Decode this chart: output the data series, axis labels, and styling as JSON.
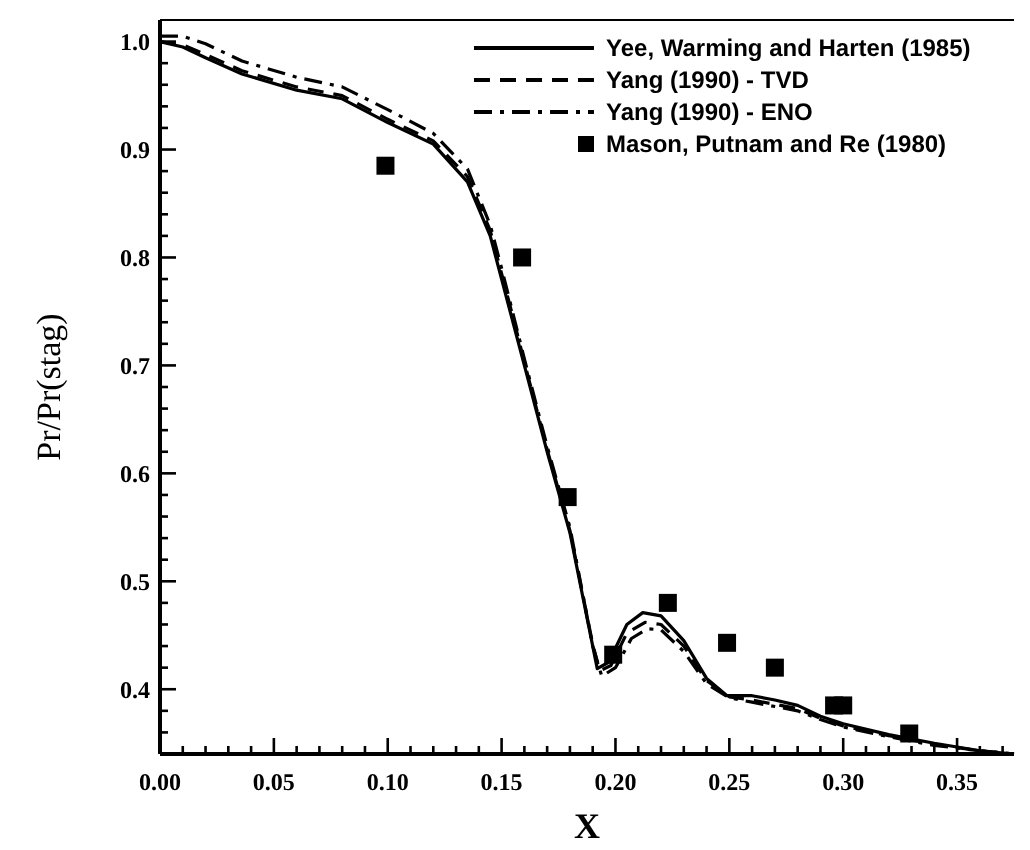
{
  "chart_data": {
    "type": "line",
    "xlabel": "X",
    "ylabel": "Pr/Pr(stag)",
    "xlim": [
      0,
      0.375
    ],
    "ylim": [
      0.34,
      1.02
    ],
    "xticks": [
      {
        "value": 0,
        "label": "0.00"
      },
      {
        "value": 0.01,
        "label": null
      },
      {
        "value": 0.02,
        "label": null
      },
      {
        "value": 0.03,
        "label": null
      },
      {
        "value": 0.04,
        "label": null
      },
      {
        "value": 0.05,
        "label": "0.05"
      },
      {
        "value": 0.06,
        "label": null
      },
      {
        "value": 0.07,
        "label": null
      },
      {
        "value": 0.08,
        "label": null
      },
      {
        "value": 0.09,
        "label": null
      },
      {
        "value": 0.1,
        "label": "0.10"
      },
      {
        "value": 0.11,
        "label": null
      },
      {
        "value": 0.12,
        "label": null
      },
      {
        "value": 0.13,
        "label": null
      },
      {
        "value": 0.14,
        "label": null
      },
      {
        "value": 0.15,
        "label": "0.15"
      },
      {
        "value": 0.16,
        "label": null
      },
      {
        "value": 0.17,
        "label": null
      },
      {
        "value": 0.18,
        "label": null
      },
      {
        "value": 0.19,
        "label": null
      },
      {
        "value": 0.2,
        "label": "0.20"
      },
      {
        "value": 0.21,
        "label": null
      },
      {
        "value": 0.22,
        "label": null
      },
      {
        "value": 0.23,
        "label": null
      },
      {
        "value": 0.24,
        "label": null
      },
      {
        "value": 0.25,
        "label": "0.25"
      },
      {
        "value": 0.26,
        "label": null
      },
      {
        "value": 0.27,
        "label": null
      },
      {
        "value": 0.28,
        "label": null
      },
      {
        "value": 0.29,
        "label": null
      },
      {
        "value": 0.3,
        "label": "0.30"
      },
      {
        "value": 0.31,
        "label": null
      },
      {
        "value": 0.32,
        "label": null
      },
      {
        "value": 0.33,
        "label": null
      },
      {
        "value": 0.34,
        "label": null
      },
      {
        "value": 0.35,
        "label": "0.35"
      },
      {
        "value": 0.36,
        "label": null
      },
      {
        "value": 0.37,
        "label": null
      }
    ],
    "yticks": [
      {
        "value": 0.36,
        "label": null
      },
      {
        "value": 0.38,
        "label": null
      },
      {
        "value": 0.4,
        "label": "0.4"
      },
      {
        "value": 0.42,
        "label": null
      },
      {
        "value": 0.44,
        "label": null
      },
      {
        "value": 0.46,
        "label": null
      },
      {
        "value": 0.48,
        "label": null
      },
      {
        "value": 0.5,
        "label": "0.5"
      },
      {
        "value": 0.52,
        "label": null
      },
      {
        "value": 0.54,
        "label": null
      },
      {
        "value": 0.56,
        "label": null
      },
      {
        "value": 0.58,
        "label": null
      },
      {
        "value": 0.6,
        "label": "0.6"
      },
      {
        "value": 0.62,
        "label": null
      },
      {
        "value": 0.64,
        "label": null
      },
      {
        "value": 0.66,
        "label": null
      },
      {
        "value": 0.68,
        "label": null
      },
      {
        "value": 0.7,
        "label": "0.7"
      },
      {
        "value": 0.72,
        "label": null
      },
      {
        "value": 0.74,
        "label": null
      },
      {
        "value": 0.76,
        "label": null
      },
      {
        "value": 0.78,
        "label": null
      },
      {
        "value": 0.8,
        "label": "0.8"
      },
      {
        "value": 0.82,
        "label": null
      },
      {
        "value": 0.84,
        "label": null
      },
      {
        "value": 0.86,
        "label": null
      },
      {
        "value": 0.88,
        "label": null
      },
      {
        "value": 0.9,
        "label": "0.9"
      },
      {
        "value": 0.92,
        "label": null
      },
      {
        "value": 0.94,
        "label": null
      },
      {
        "value": 0.96,
        "label": null
      },
      {
        "value": 0.98,
        "label": null
      },
      {
        "value": 1.0,
        "label": "1.0"
      }
    ],
    "grid": false,
    "legend": "top right",
    "series": [
      {
        "name": "Yee, Warming and Harten (1985)",
        "color": "#000000",
        "line_style": "solid",
        "x": [
          0,
          0.01,
          0.02,
          0.036,
          0.06,
          0.08,
          0.1,
          0.12,
          0.135,
          0.145,
          0.15,
          0.155,
          0.16,
          0.17,
          0.18,
          0.19,
          0.192,
          0.197,
          0.205,
          0.212,
          0.22,
          0.23,
          0.24,
          0.249,
          0.26,
          0.27,
          0.28,
          0.29,
          0.3,
          0.32,
          0.34,
          0.36,
          0.375
        ],
        "values": [
          1.0,
          0.995,
          0.985,
          0.97,
          0.955,
          0.947,
          0.925,
          0.905,
          0.87,
          0.82,
          0.78,
          0.74,
          0.7,
          0.62,
          0.545,
          0.44,
          0.419,
          0.425,
          0.46,
          0.471,
          0.468,
          0.445,
          0.41,
          0.394,
          0.394,
          0.39,
          0.385,
          0.375,
          0.368,
          0.358,
          0.35,
          0.343,
          0.34
        ]
      },
      {
        "name": "Yang (1990) - TVD",
        "color": "#000000",
        "line_style": "dashed",
        "x": [
          0,
          0.01,
          0.02,
          0.036,
          0.06,
          0.08,
          0.1,
          0.12,
          0.135,
          0.145,
          0.15,
          0.155,
          0.16,
          0.17,
          0.18,
          0.19,
          0.193,
          0.198,
          0.205,
          0.213,
          0.22,
          0.23,
          0.24,
          0.25,
          0.26,
          0.27,
          0.28,
          0.29,
          0.3,
          0.32,
          0.34,
          0.36,
          0.375
        ],
        "values": [
          1.0,
          0.997,
          0.988,
          0.973,
          0.958,
          0.95,
          0.928,
          0.908,
          0.875,
          0.825,
          0.785,
          0.745,
          0.703,
          0.622,
          0.547,
          0.442,
          0.417,
          0.422,
          0.452,
          0.462,
          0.46,
          0.44,
          0.408,
          0.393,
          0.39,
          0.386,
          0.382,
          0.373,
          0.366,
          0.357,
          0.349,
          0.343,
          0.34
        ]
      },
      {
        "name": "Yang (1990) - ENO",
        "color": "#000000",
        "line_style": "dashdot",
        "x": [
          0,
          0.01,
          0.02,
          0.036,
          0.06,
          0.08,
          0.1,
          0.12,
          0.135,
          0.145,
          0.15,
          0.155,
          0.16,
          0.17,
          0.18,
          0.19,
          0.194,
          0.2,
          0.207,
          0.214,
          0.22,
          0.23,
          0.24,
          0.25,
          0.26,
          0.27,
          0.28,
          0.29,
          0.3,
          0.32,
          0.34,
          0.36,
          0.375
        ],
        "values": [
          1.005,
          1.005,
          0.998,
          0.982,
          0.967,
          0.958,
          0.937,
          0.915,
          0.882,
          0.83,
          0.79,
          0.748,
          0.706,
          0.625,
          0.55,
          0.44,
          0.412,
          0.42,
          0.447,
          0.456,
          0.455,
          0.435,
          0.405,
          0.392,
          0.388,
          0.384,
          0.38,
          0.372,
          0.365,
          0.356,
          0.348,
          0.343,
          0.34
        ]
      },
      {
        "name": "Mason, Putnam and Re (1980)",
        "color": "#000000",
        "type": "scatter",
        "marker": "square",
        "x": [
          0.099,
          0.159,
          0.179,
          0.199,
          0.223,
          0.249,
          0.27,
          0.296,
          0.3,
          0.329
        ],
        "values": [
          0.885,
          0.8,
          0.578,
          0.432,
          0.48,
          0.443,
          0.42,
          0.385,
          0.385,
          0.359
        ]
      }
    ]
  }
}
